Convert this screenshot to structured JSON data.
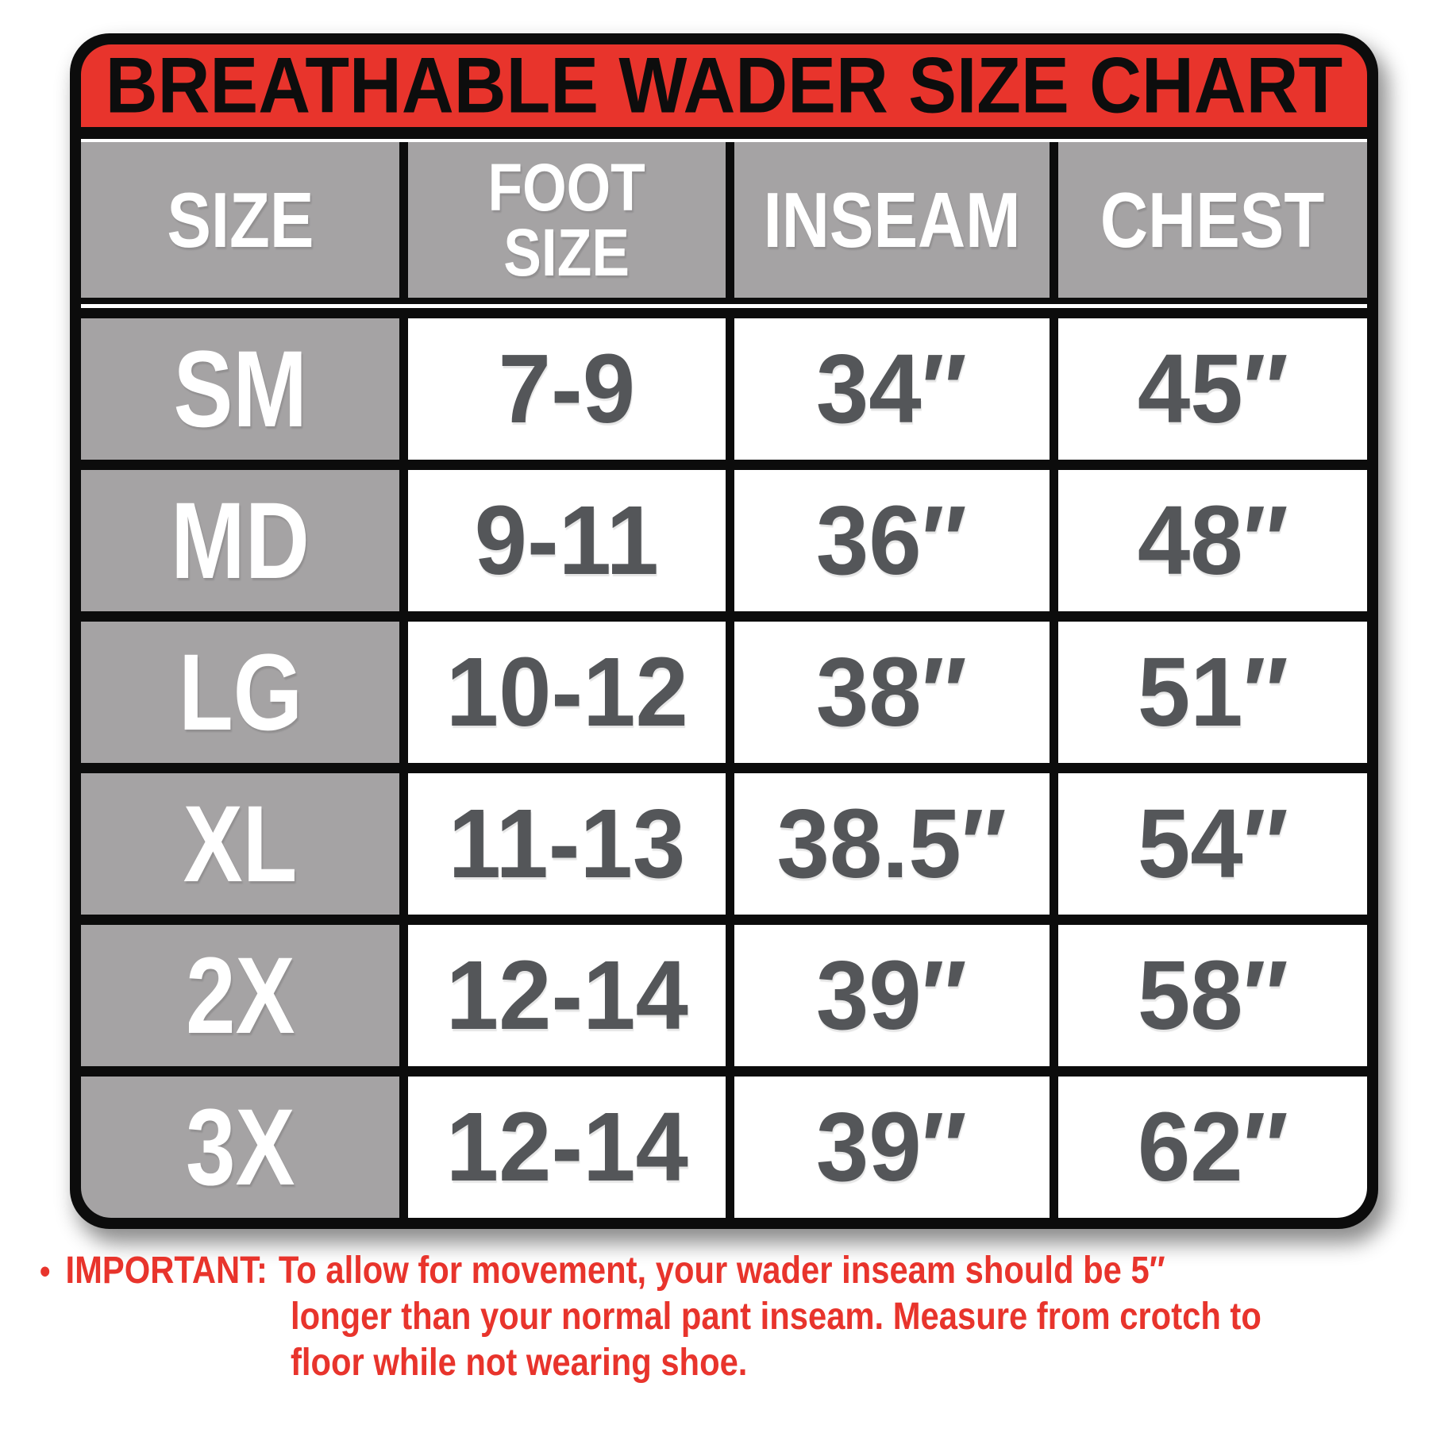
{
  "title": "BREATHABLE WADER SIZE CHART",
  "colors": {
    "accent_red": "#E8342C",
    "header_gray": "#A5A3A4",
    "value_text_gray": "#545659",
    "border_black": "#0C0C0C",
    "cell_white": "#FFFFFF"
  },
  "chart_data": {
    "type": "table",
    "title": "BREATHABLE WADER SIZE CHART",
    "columns": [
      "SIZE",
      "FOOT\nSIZE",
      "INSEAM",
      "CHEST"
    ],
    "rows": [
      {
        "size": "SM",
        "foot_size": "7-9",
        "inseam": "34″",
        "chest": "45″"
      },
      {
        "size": "MD",
        "foot_size": "9-11",
        "inseam": "36″",
        "chest": "48″"
      },
      {
        "size": "LG",
        "foot_size": "10-12",
        "inseam": "38″",
        "chest": "51″"
      },
      {
        "size": "XL",
        "foot_size": "11-13",
        "inseam": "38.5″",
        "chest": "54″"
      },
      {
        "size": "2X",
        "foot_size": "12-14",
        "inseam": "39″",
        "chest": "58″"
      },
      {
        "size": "3X",
        "foot_size": "12-14",
        "inseam": "39″",
        "chest": "62″"
      }
    ]
  },
  "note": {
    "bullet": "•",
    "label": "IMPORTANT:",
    "line1": "To allow for movement, your wader inseam should be 5″",
    "line2": "longer than your normal pant inseam. Measure from crotch to",
    "line3": "floor while not wearing shoe."
  }
}
